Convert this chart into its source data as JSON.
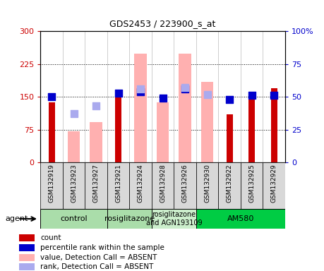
{
  "title": "GDS2453 / 223900_s_at",
  "samples": [
    "GSM132919",
    "GSM132923",
    "GSM132927",
    "GSM132921",
    "GSM132924",
    "GSM132928",
    "GSM132926",
    "GSM132930",
    "GSM132922",
    "GSM132925",
    "GSM132929"
  ],
  "red_bars": [
    137,
    0,
    0,
    163,
    0,
    0,
    0,
    0,
    110,
    155,
    170
  ],
  "pink_bars": [
    0,
    72,
    93,
    0,
    248,
    137,
    248,
    185,
    0,
    0,
    0
  ],
  "blue_squares_pct": [
    50,
    0,
    0,
    53,
    54,
    49,
    56,
    0,
    48,
    51,
    51
  ],
  "lightblue_squares_pct": [
    0,
    37,
    43,
    0,
    56,
    0,
    57,
    52,
    0,
    0,
    0
  ],
  "ylim_left": [
    0,
    300
  ],
  "ylim_right": [
    0,
    100
  ],
  "yticks_left": [
    0,
    75,
    150,
    225,
    300
  ],
  "yticks_right": [
    0,
    25,
    50,
    75,
    100
  ],
  "groups": [
    {
      "label": "control",
      "start": 0,
      "end": 3,
      "color": "#aaddaa"
    },
    {
      "label": "rosiglitazone",
      "start": 3,
      "end": 5,
      "color": "#aaddaa"
    },
    {
      "label": "rosiglitazone\nand AGN193109",
      "start": 5,
      "end": 7,
      "color": "#cceecc"
    },
    {
      "label": "AM580",
      "start": 7,
      "end": 11,
      "color": "#00cc44"
    }
  ],
  "red_color": "#cc0000",
  "pink_color": "#ffb0b0",
  "blue_color": "#0000cc",
  "lightblue_color": "#aaaaee",
  "left_axis_color": "#cc0000",
  "right_axis_color": "#0000cc",
  "agent_label": "agent"
}
